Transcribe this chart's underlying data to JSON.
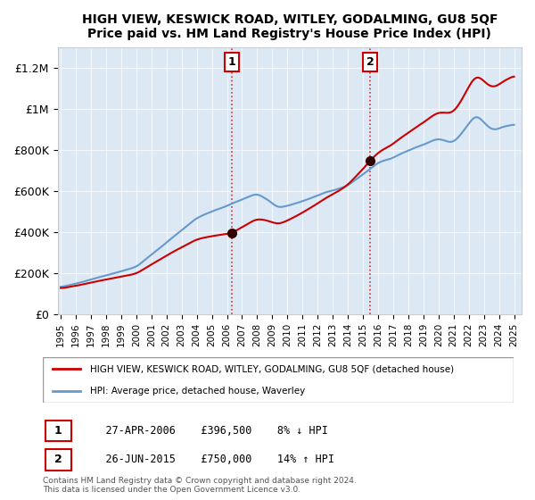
{
  "title": "HIGH VIEW, KESWICK ROAD, WITLEY, GODALMING, GU8 5QF",
  "subtitle": "Price paid vs. HM Land Registry's House Price Index (HPI)",
  "ylabel_ticks": [
    "£0",
    "£200K",
    "£400K",
    "£600K",
    "£800K",
    "£1M",
    "£1.2M"
  ],
  "ylim": [
    0,
    1300000
  ],
  "xlim_start": 1995,
  "xlim_end": 2025.5,
  "background_color": "#dce9f5",
  "plot_bg_color": "#dce9f5",
  "sale1_year": 2006.32,
  "sale1_price": 396500,
  "sale1_label": "1",
  "sale2_year": 2015.49,
  "sale2_price": 750000,
  "sale2_label": "2",
  "legend_line1": "HIGH VIEW, KESWICK ROAD, WITLEY, GODALMING, GU8 5QF (detached house)",
  "legend_line2": "HPI: Average price, detached house, Waverley",
  "table_row1": "1    27-APR-2006    £396,500    8% ↓ HPI",
  "table_row2": "2    26-JUN-2015    £750,000    14% ↑ HPI",
  "footer": "Contains HM Land Registry data © Crown copyright and database right 2024.\nThis data is licensed under the Open Government Licence v3.0.",
  "red_color": "#cc0000",
  "blue_color": "#6699cc",
  "vline_color": "#cc0000"
}
